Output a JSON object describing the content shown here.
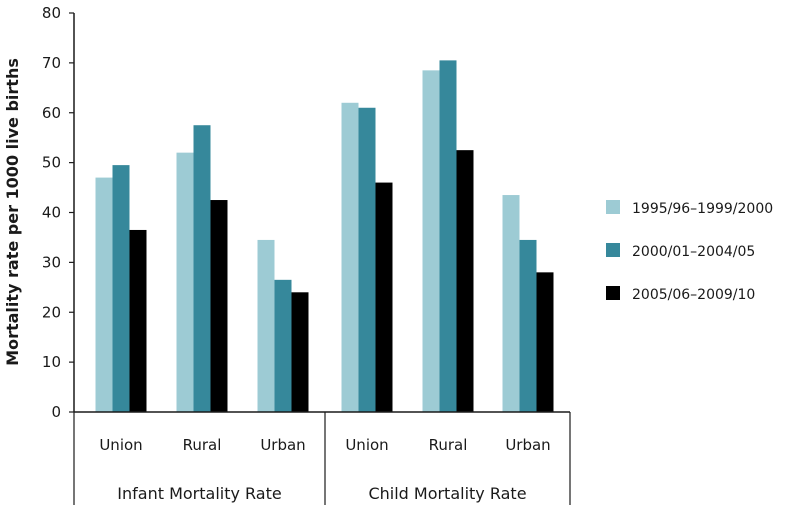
{
  "chart_data": {
    "type": "bar",
    "title": "",
    "ylabel": "Mortality rate per 1000 live births",
    "xlabel": "",
    "ylim": [
      0,
      80
    ],
    "yticks": [
      0,
      10,
      20,
      30,
      40,
      50,
      60,
      70,
      80
    ],
    "grid": false,
    "legend_position": "right",
    "groups": [
      {
        "name": "Infant Mortality Rate",
        "categories": [
          "Union",
          "Rural",
          "Urban"
        ]
      },
      {
        "name": "Child Mortality Rate",
        "categories": [
          "Union",
          "Rural",
          "Urban"
        ]
      }
    ],
    "categories": [
      "Union",
      "Rural",
      "Urban",
      "Union",
      "Rural",
      "Urban"
    ],
    "series": [
      {
        "name": "1995/96–1999/2000",
        "color": "#9dcbd4",
        "values": [
          47,
          52,
          34.5,
          62,
          68.5,
          43.5
        ]
      },
      {
        "name": "2000/01–2004/05",
        "color": "#36889b",
        "values": [
          49.5,
          57.5,
          26.5,
          61,
          70.5,
          34.5
        ]
      },
      {
        "name": "2005/06–2009/10",
        "color": "#000000",
        "values": [
          36.5,
          42.5,
          24,
          46,
          52.5,
          28
        ]
      }
    ]
  }
}
